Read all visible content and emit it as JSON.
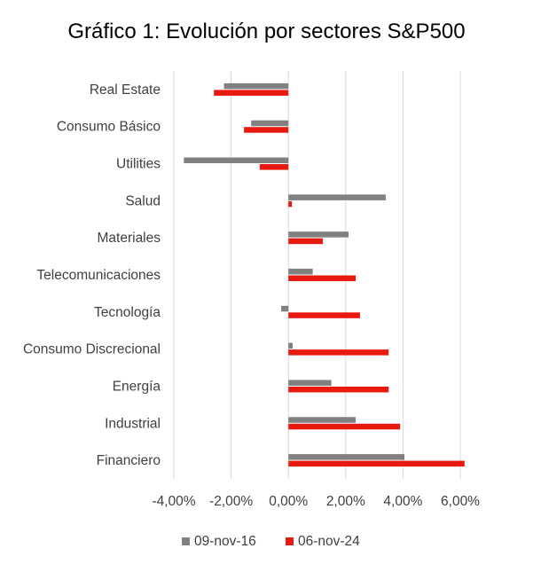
{
  "chart_data": {
    "type": "bar",
    "orientation": "horizontal",
    "title": "Gráfico 1: Evolución por sectores S&P500",
    "categories": [
      "Real Estate",
      "Consumo Básico",
      "Utilities",
      "Salud",
      "Materiales",
      "Telecomunicaciones",
      "Tecnología",
      "Consumo Discrecional",
      "Energía",
      "Industrial",
      "Financiero"
    ],
    "series": [
      {
        "name": "09-nov-16",
        "color": "#808080",
        "values": [
          -2.25,
          -1.3,
          -3.65,
          3.4,
          2.1,
          0.85,
          -0.25,
          0.15,
          1.5,
          2.35,
          4.05
        ]
      },
      {
        "name": "06-nov-24",
        "color": "#E8190E",
        "values": [
          -2.6,
          -1.55,
          -1.0,
          0.12,
          1.2,
          2.35,
          2.5,
          3.5,
          3.5,
          3.9,
          6.15
        ]
      }
    ],
    "xlim": [
      -4,
      6
    ],
    "xticks": [
      "-4,00%",
      "-2,00%",
      "0,00%",
      "2,00%",
      "4,00%",
      "6,00%"
    ],
    "xtick_values": [
      -4,
      -2,
      0,
      2,
      4,
      6
    ],
    "grid": "vertical",
    "legend_position": "bottom"
  }
}
